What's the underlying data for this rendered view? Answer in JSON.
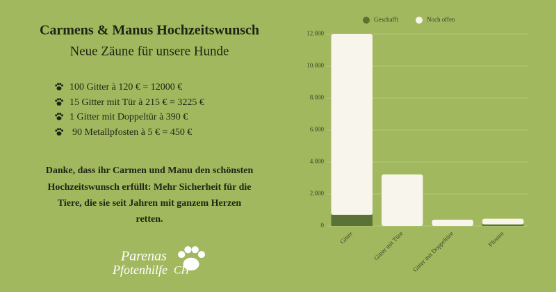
{
  "header": {
    "title": "Carmens & Manus Hochzeitswunsch",
    "subtitle": "Neue Zäune für unsere Hunde"
  },
  "items": [
    "100 Gitter à 120 € = 12000 €",
    "15 Gitter mit Tür à 215 € = 3225 €",
    "1 Gitter mit Doppeltür à 390 €",
    "90 Metallpfosten à 5 € = 450 €"
  ],
  "message": [
    "Danke, dass ihr Carmen und Manu den schönsten",
    "Hochzeitswunsch erfüllt: Mehr Sicherheit für die",
    "Tiere, die sie seit Jahren mit ganzem Herzen",
    "retten."
  ],
  "logo": {
    "line1": "Parenas",
    "line2": "Pfotenhilfe",
    "suffix": "CH"
  },
  "chart_data": {
    "type": "stacked_bar",
    "categories": [
      "Gitter",
      "Gitter mit Türe",
      "Gitter mit Doppeltüre",
      "Pfosten"
    ],
    "series": [
      {
        "name": "Geschafft",
        "color": "#5b7237",
        "values": [
          700,
          0,
          0,
          100
        ]
      },
      {
        "name": "Noch offen",
        "color": "#f8f6ec",
        "values": [
          11300,
          3225,
          390,
          350
        ]
      }
    ],
    "ylim": [
      0,
      12000
    ],
    "yticks": [
      0,
      {
        "value": 2000,
        "label": "2.000"
      },
      {
        "value": 4000,
        "label": "4.000"
      },
      {
        "value": 6000,
        "label": "6.000"
      },
      {
        "value": 8000,
        "label": "8.000"
      },
      {
        "value": 10000,
        "label": "10.000"
      },
      {
        "value": 12000,
        "label": "12.000"
      }
    ],
    "grid": true,
    "legend": "top"
  }
}
